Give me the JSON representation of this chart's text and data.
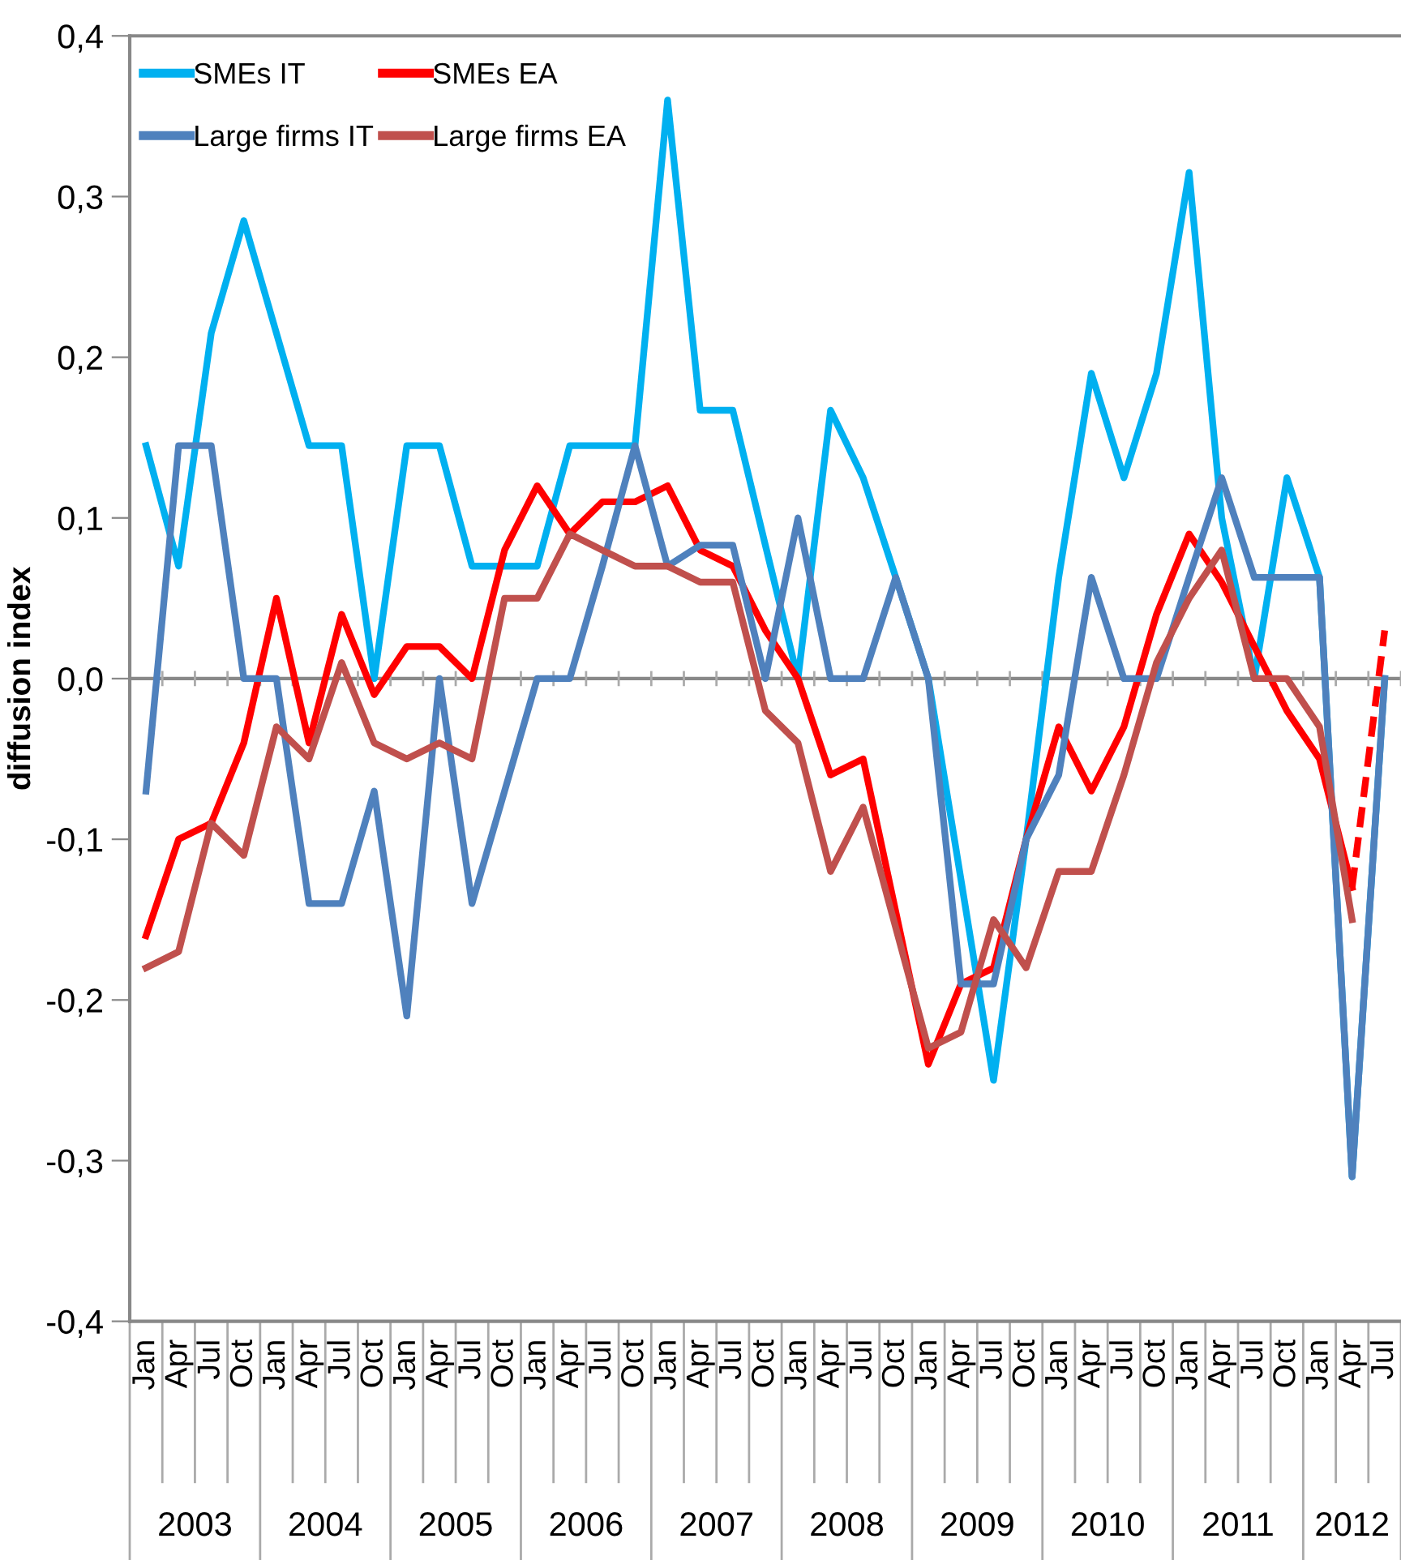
{
  "chart_data": {
    "type": "line",
    "ylabel": "diffusion index",
    "categories": [
      "Jan",
      "Apr",
      "Jul",
      "Oct",
      "Jan",
      "Apr",
      "Jul",
      "Oct",
      "Jan",
      "Apr",
      "Jul",
      "Oct",
      "Jan",
      "Apr",
      "Jul",
      "Oct",
      "Jan",
      "Apr",
      "Jul",
      "Oct",
      "Jan",
      "Apr",
      "Jul",
      "Oct",
      "Jan",
      "Apr",
      "Jul",
      "Oct",
      "Jan",
      "Apr",
      "Jul",
      "Oct",
      "Jan",
      "Apr",
      "Jul",
      "Oct",
      "Jan",
      "Apr",
      "Jul"
    ],
    "series": [
      {
        "name": "SMEs IT",
        "color": "#00b0f0",
        "values": [
          0.145,
          0.07,
          0.215,
          0.285,
          0.215,
          0.145,
          0.145,
          0.0,
          0.145,
          0.145,
          0.07,
          0.07,
          0.07,
          0.145,
          0.145,
          0.145,
          0.36,
          0.167,
          0.167,
          0.083,
          0.0,
          0.167,
          0.125,
          0.063,
          0.0,
          -0.125,
          -0.25,
          -0.1,
          0.063,
          0.19,
          0.125,
          0.19,
          0.315,
          0.1,
          0.0,
          0.125,
          0.063,
          -0.31,
          0.0
        ]
      },
      {
        "name": "SMEs EA",
        "color": "#ff0000",
        "values": [
          -0.16,
          -0.1,
          -0.09,
          -0.04,
          0.05,
          -0.04,
          0.04,
          -0.01,
          0.02,
          0.02,
          0.0,
          0.08,
          0.12,
          0.09,
          0.11,
          0.11,
          0.12,
          0.08,
          0.07,
          0.03,
          0.0,
          -0.06,
          -0.05,
          -0.145,
          -0.24,
          -0.19,
          -0.18,
          -0.1,
          -0.03,
          -0.07,
          -0.03,
          0.04,
          0.09,
          0.06,
          0.02,
          -0.02,
          -0.05,
          -0.13,
          null
        ]
      },
      {
        "name": "Large firms IT",
        "color": "#4f81bd",
        "values": [
          -0.07,
          0.145,
          0.145,
          0.0,
          0.0,
          -0.14,
          -0.14,
          -0.07,
          -0.21,
          0.0,
          -0.14,
          -0.07,
          0.0,
          0.0,
          0.07,
          0.145,
          0.07,
          0.083,
          0.083,
          0.0,
          0.1,
          0.0,
          0.0,
          0.063,
          0.0,
          -0.19,
          -0.19,
          -0.1,
          -0.06,
          0.063,
          0.0,
          0.0,
          0.063,
          0.125,
          0.063,
          0.063,
          0.063,
          -0.31,
          0.0
        ]
      },
      {
        "name": "Large firms EA",
        "color": "#c0504d",
        "values": [
          -0.18,
          -0.17,
          -0.09,
          -0.11,
          -0.03,
          -0.05,
          0.01,
          -0.04,
          -0.05,
          -0.04,
          -0.05,
          0.05,
          0.05,
          0.09,
          0.08,
          0.07,
          0.07,
          0.06,
          0.06,
          -0.02,
          -0.04,
          -0.12,
          -0.08,
          -0.155,
          -0.23,
          -0.22,
          -0.15,
          -0.18,
          -0.12,
          -0.12,
          -0.06,
          0.01,
          0.05,
          0.08,
          0.0,
          0.0,
          -0.03,
          -0.15,
          null
        ]
      },
      {
        "color": "#ff0000",
        "line_style": "dashed",
        "values": [
          null,
          null,
          null,
          null,
          null,
          null,
          null,
          null,
          null,
          null,
          null,
          null,
          null,
          null,
          null,
          null,
          null,
          null,
          null,
          null,
          null,
          null,
          null,
          null,
          null,
          null,
          null,
          null,
          null,
          null,
          null,
          null,
          null,
          null,
          null,
          null,
          null,
          -0.13,
          0.03
        ]
      }
    ],
    "ylim": [
      -0.4,
      0.4
    ],
    "yticks": [
      {
        "value": -0.4,
        "label": "-0,4"
      },
      {
        "value": -0.3,
        "label": "-0,3"
      },
      {
        "value": -0.2,
        "label": "-0,2"
      },
      {
        "value": -0.1,
        "label": "-0,1"
      },
      {
        "value": 0.0,
        "label": "0,0"
      },
      {
        "value": 0.1,
        "label": "0,1"
      },
      {
        "value": 0.2,
        "label": "0,2"
      },
      {
        "value": 0.3,
        "label": "0,3"
      },
      {
        "value": 0.4,
        "label": "0,4"
      }
    ],
    "ref_lines": [
      {
        "axis": "y",
        "value": 0.0,
        "color": "#888888"
      }
    ],
    "annotations": [
      "2003",
      "2004",
      "2005",
      "2006",
      "2007",
      "2008",
      "2009",
      "2010",
      "2011",
      "2012"
    ],
    "grid": false,
    "legend": "top left",
    "marker": "none",
    "line_style": "solid"
  }
}
